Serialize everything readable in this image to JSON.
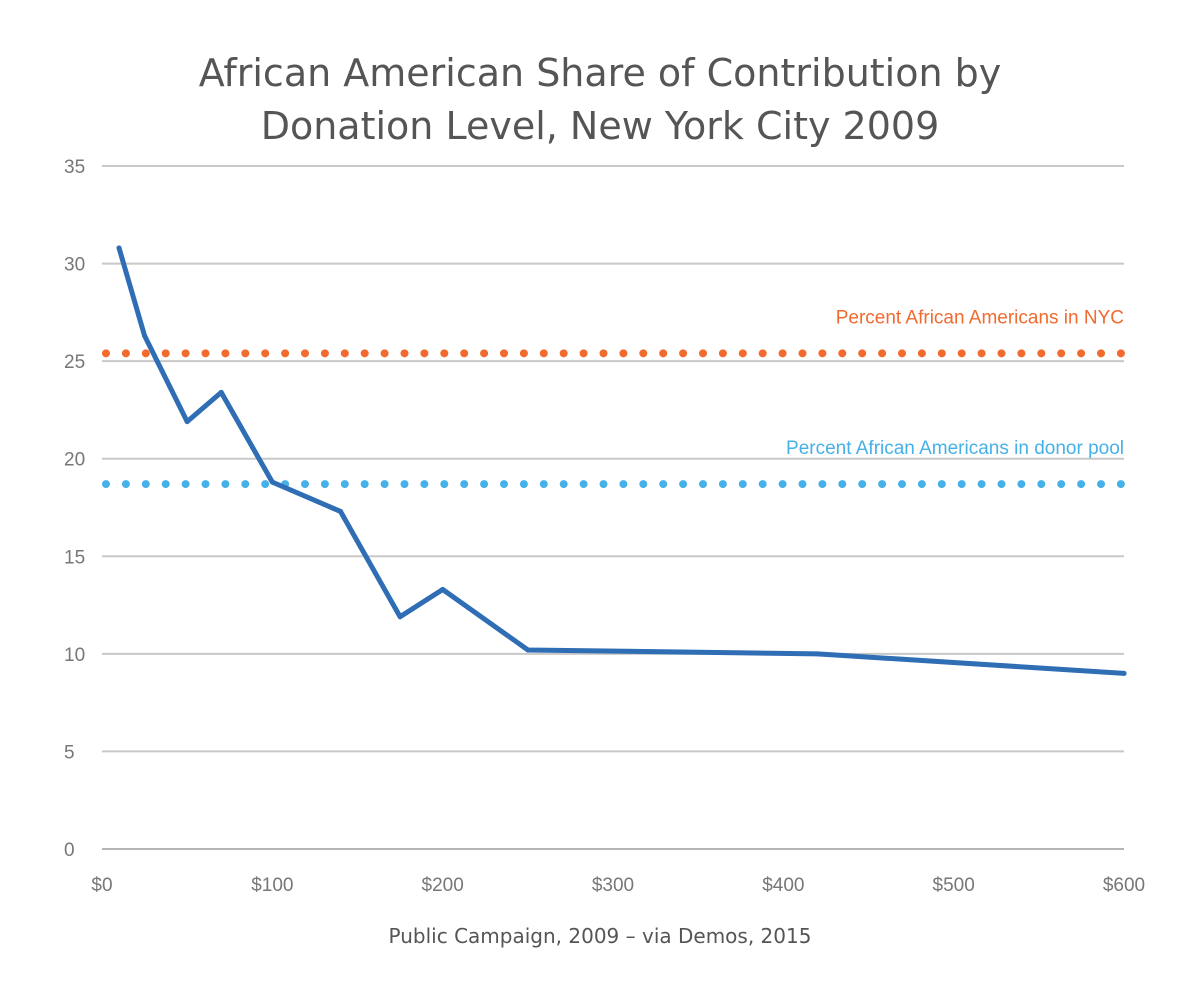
{
  "title_lines": [
    "African American Share of Contribution by",
    "Donation Level, New York City 2009"
  ],
  "source": "Public Campaign, 2009 – via Demos, 2015",
  "chart_data": {
    "type": "line",
    "title": "African American Share of Contribution by Donation Level, New York City 2009",
    "xlabel": "",
    "ylabel": "",
    "xlim": [
      0,
      600
    ],
    "ylim": [
      0,
      35
    ],
    "x_ticks": [
      0,
      100,
      200,
      300,
      400,
      500,
      600
    ],
    "x_tick_labels": [
      "$0",
      "$100",
      "$200",
      "$300",
      "$400",
      "$500",
      "$600"
    ],
    "y_ticks": [
      0,
      5,
      10,
      15,
      20,
      25,
      30,
      35
    ],
    "y_tick_labels": [
      "0",
      "5",
      "10",
      "15",
      "20",
      "25",
      "30",
      "35"
    ],
    "grid": "horizontal",
    "series": [
      {
        "color": "#2f6db5",
        "x": [
          10,
          25,
          50,
          70,
          100,
          140,
          175,
          200,
          250,
          420,
          600
        ],
        "y": [
          30.8,
          26.3,
          21.9,
          23.4,
          18.8,
          17.3,
          11.9,
          13.3,
          10.2,
          10.0,
          9.0
        ]
      }
    ],
    "reference_lines": [
      {
        "label": "Percent African Americans in NYC",
        "y": 25.4,
        "color": "#f26a2e",
        "style": "dotted"
      },
      {
        "label": "Percent African Americans in donor pool",
        "y": 18.7,
        "color": "#45b1e8",
        "style": "dotted"
      }
    ]
  }
}
